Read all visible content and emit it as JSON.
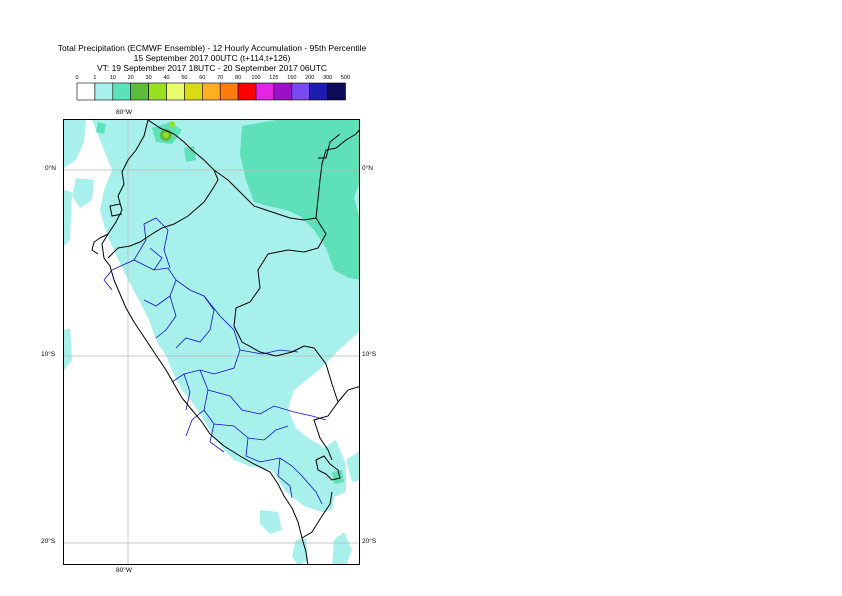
{
  "title": {
    "line1": "Total Precipitation (ECMWF Ensemble) - 12 Hourly Accumulation - 95th Percentile",
    "line2": "15 September 2017 00UTC (t+114,t+126)",
    "line3": "VT: 19 September 2017 18UTC - 20 September 2017 06UTC"
  },
  "legend": {
    "thresholds": [
      "0",
      "1",
      "10",
      "20",
      "30",
      "40",
      "50",
      "60",
      "70",
      "80",
      "100",
      "125",
      "150",
      "200",
      "300",
      "500"
    ],
    "colors": [
      "#ffffff",
      "#a8f0ec",
      "#5ee0b8",
      "#5cbc3c",
      "#98e020",
      "#e8fc6c",
      "#d8dc10",
      "#ffb020",
      "#ff7c0c",
      "#ff0000",
      "#e424e0",
      "#9c10c8",
      "#7848f0",
      "#1c1cb0",
      "#0c0c58"
    ]
  },
  "map": {
    "lon_label_top": "80°W",
    "lon_label_bottom": "80°W",
    "lat_labels_left": [
      "0°N",
      "10°S",
      "20°S"
    ],
    "lat_labels_right": [
      "0°N",
      "10°S",
      "20°S"
    ],
    "colors": {
      "light": "#a8f0ec",
      "medium": "#5ee0b8",
      "heavy": "#98e020",
      "coast": "#000000",
      "admin": "#1010c8",
      "grid": "#b8b8b8"
    }
  }
}
